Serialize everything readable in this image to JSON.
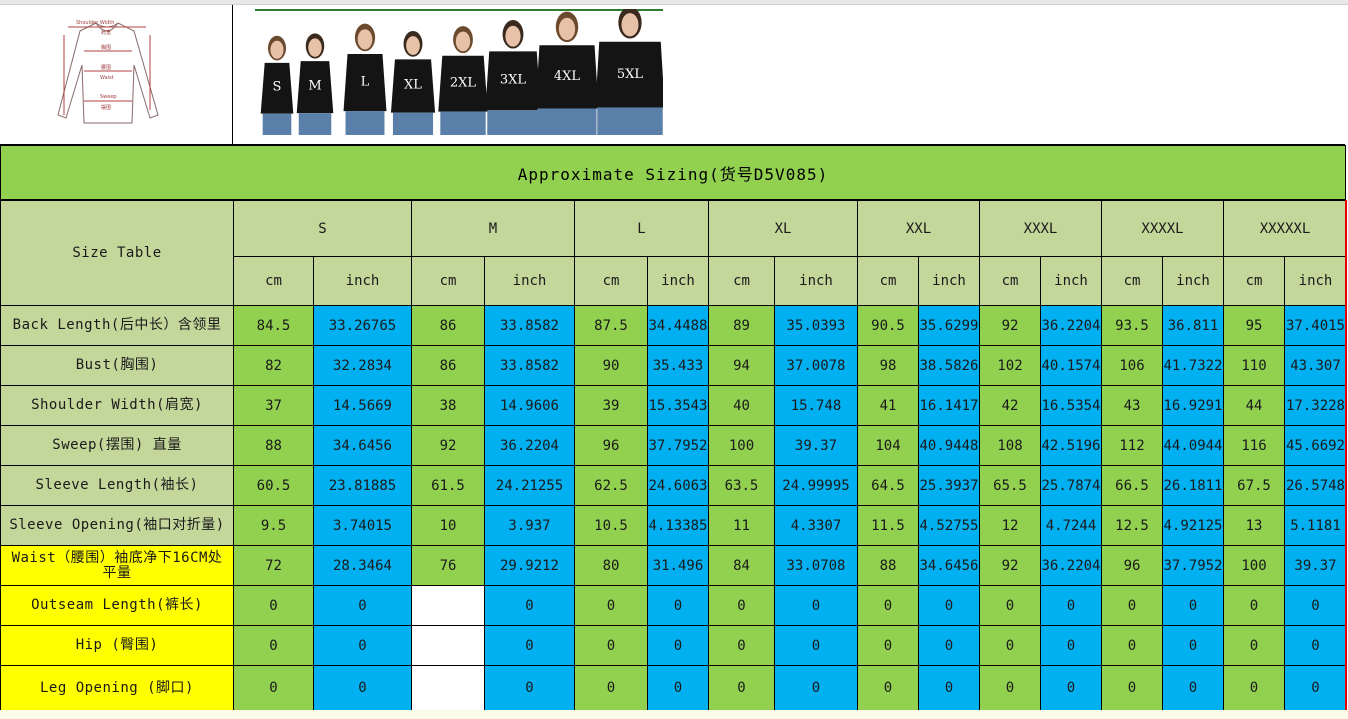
{
  "title": "Approximate Sizing(货号D5V085)",
  "diagram": {
    "labels": {
      "shoulder": "Shoulder Width",
      "shoulder_cn": "肩宽",
      "bust": "胸围",
      "waist": "腰围",
      "waist_en": "Waist",
      "sweep": "Sweep",
      "sweep_cn": "摆围"
    }
  },
  "photo": {
    "sizes": [
      "S",
      "M",
      "L",
      "XL",
      "2XL",
      "3XL",
      "4XL",
      "5XL"
    ]
  },
  "table": {
    "corner": "Size Table",
    "sizes": [
      "S",
      "M",
      "L",
      "XL",
      "XXL",
      "XXXL",
      "XXXXL",
      "XXXXXL"
    ],
    "units": [
      "cm",
      "inch"
    ],
    "rows": [
      {
        "label": "Back Length(后中长）含领里",
        "values": [
          "84.5",
          "33.26765",
          "86",
          "33.8582",
          "87.5",
          "34.4488",
          "89",
          "35.0393",
          "90.5",
          "35.6299",
          "92",
          "36.2204",
          "93.5",
          "36.811",
          "95",
          "37.4015"
        ]
      },
      {
        "label": "Bust(胸围)",
        "values": [
          "82",
          "32.2834",
          "86",
          "33.8582",
          "90",
          "35.433",
          "94",
          "37.0078",
          "98",
          "38.5826",
          "102",
          "40.1574",
          "106",
          "41.7322",
          "110",
          "43.307"
        ]
      },
      {
        "label": "Shoulder Width(肩宽)",
        "values": [
          "37",
          "14.5669",
          "38",
          "14.9606",
          "39",
          "15.3543",
          "40",
          "15.748",
          "41",
          "16.1417",
          "42",
          "16.5354",
          "43",
          "16.9291",
          "44",
          "17.3228"
        ]
      },
      {
        "label": "Sweep(摆围) 直量",
        "values": [
          "88",
          "34.6456",
          "92",
          "36.2204",
          "96",
          "37.7952",
          "100",
          "39.37",
          "104",
          "40.9448",
          "108",
          "42.5196",
          "112",
          "44.0944",
          "116",
          "45.6692"
        ]
      },
      {
        "label": "Sleeve Length(袖长)",
        "values": [
          "60.5",
          "23.81885",
          "61.5",
          "24.21255",
          "62.5",
          "24.6063",
          "63.5",
          "24.99995",
          "64.5",
          "25.3937",
          "65.5",
          "25.7874",
          "66.5",
          "26.1811",
          "67.5",
          "26.5748"
        ]
      },
      {
        "label": "Sleeve Opening(袖口对折量)",
        "values": [
          "9.5",
          "3.74015",
          "10",
          "3.937",
          "10.5",
          "4.13385",
          "11",
          "4.3307",
          "11.5",
          "4.52755",
          "12",
          "4.7244",
          "12.5",
          "4.92125",
          "13",
          "5.1181"
        ]
      },
      {
        "label": "Waist（腰围）袖底净下16CM处平量",
        "values": [
          "72",
          "28.3464",
          "76",
          "29.9212",
          "80",
          "31.496",
          "84",
          "33.0708",
          "88",
          "34.6456",
          "92",
          "36.2204",
          "96",
          "37.7952",
          "100",
          "39.37"
        ]
      },
      {
        "label": "Outseam Length(裤长)",
        "values": [
          "0",
          "0",
          "",
          "0",
          "0",
          "0",
          "0",
          "0",
          "0",
          "0",
          "0",
          "0",
          "0",
          "0",
          "0",
          "0"
        ]
      },
      {
        "label": "Hip (臀围)",
        "values": [
          "0",
          "0",
          "",
          "0",
          "0",
          "0",
          "0",
          "0",
          "0",
          "0",
          "0",
          "0",
          "0",
          "0",
          "0",
          "0"
        ]
      },
      {
        "label": "Leg Opening (脚口)",
        "values": [
          "0",
          "0",
          "",
          "0",
          "0",
          "0",
          "0",
          "0",
          "0",
          "0",
          "0",
          "0",
          "0",
          "0",
          "0",
          "0"
        ]
      }
    ]
  },
  "colors": {
    "green": "#92d050",
    "blue": "#00b0f0",
    "olive": "#c4d79b",
    "yellow": "#ffff00"
  }
}
